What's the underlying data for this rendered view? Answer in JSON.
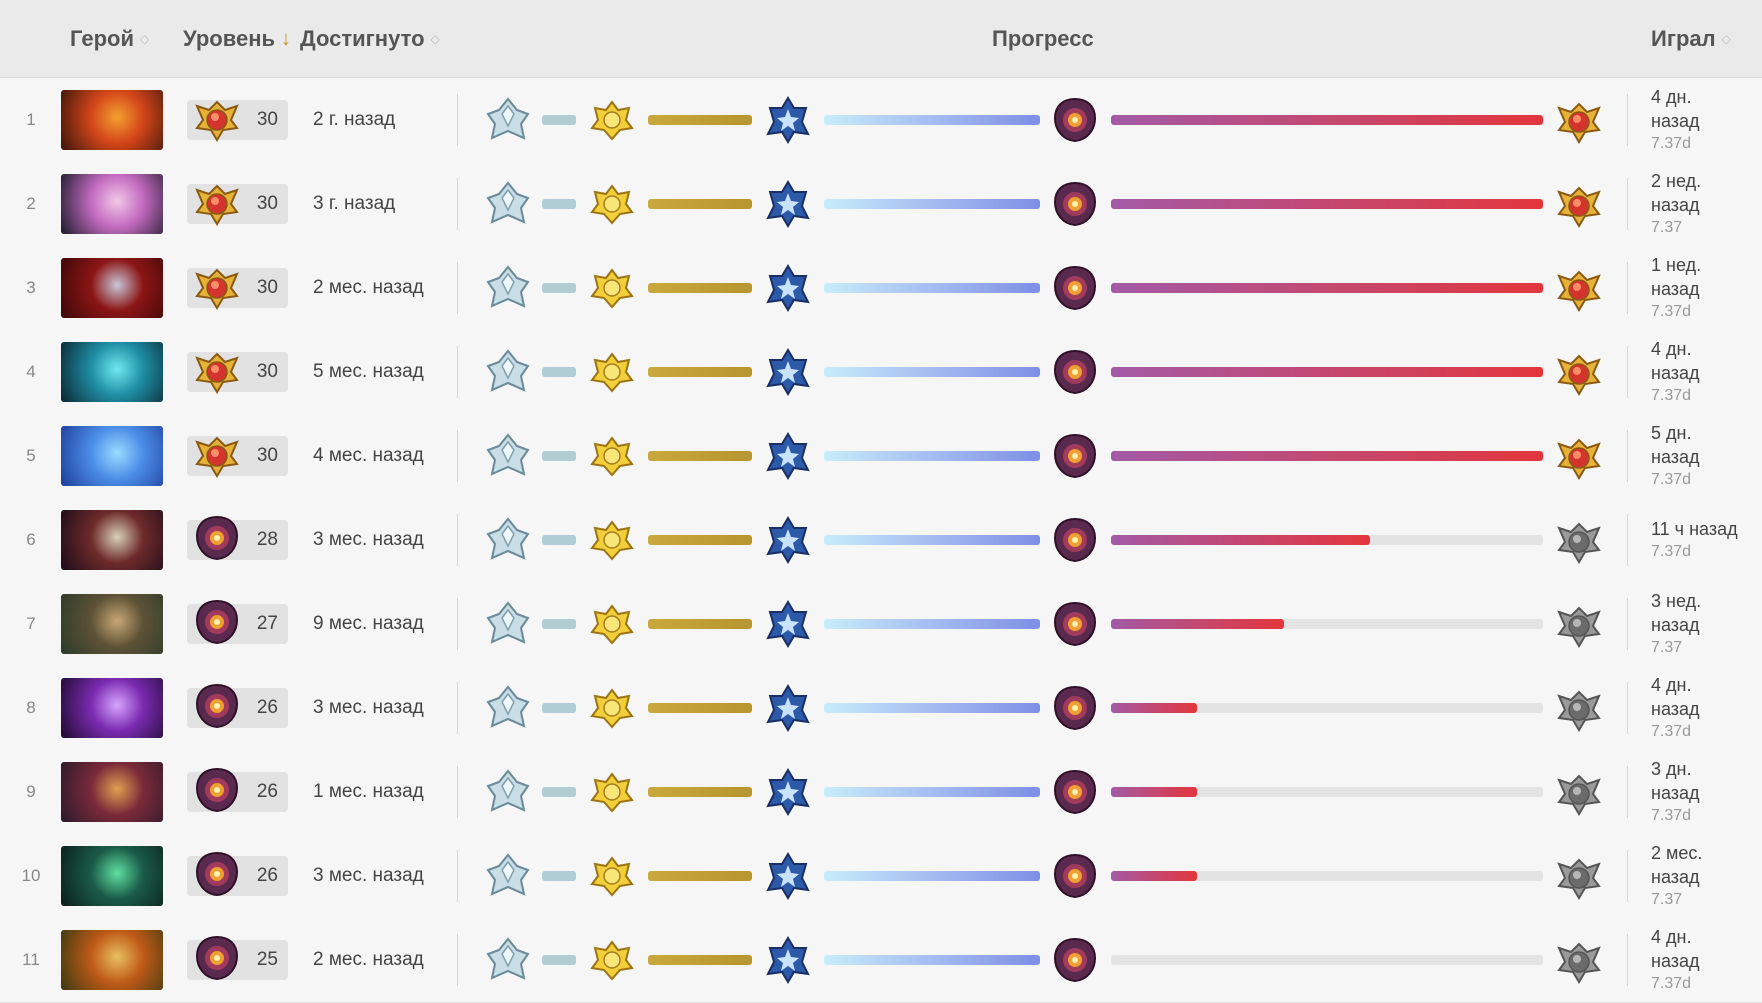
{
  "header": {
    "hero": "Герой",
    "level": "Уровень",
    "achieved": "Достигнуто",
    "progress": "Прогресс",
    "played": "Играл"
  },
  "colors": {
    "bronze_bar": "#b0cdd6",
    "gold_bar": "#b8952f",
    "plat_bar_from": "#c7ecfb",
    "plat_bar_to": "#7f8fe6",
    "grand_bar_from": "#a35aa6",
    "grand_bar_to": "#e3363c",
    "track": "#e3e3e3"
  },
  "icons": [
    "bronze-tier-icon",
    "gold-tier-icon",
    "platinum-tier-icon",
    "grandmaster-tier-icon",
    "legend-tier-icon"
  ],
  "rows": [
    {
      "n": "1",
      "level": "30",
      "achieved": "2 г. назад",
      "progress": 1.0,
      "played": "4 дн. назад",
      "patch": "7.37d",
      "hero_colors": [
        "#3a1408",
        "#d4461a",
        "#f3a030"
      ]
    },
    {
      "n": "2",
      "level": "30",
      "achieved": "3 г. назад",
      "progress": 1.0,
      "played": "2 нед. назад",
      "patch": "7.37",
      "hero_colors": [
        "#1a1a2a",
        "#c46bc0",
        "#f1c8e8"
      ]
    },
    {
      "n": "3",
      "level": "30",
      "achieved": "2 мес. назад",
      "progress": 1.0,
      "played": "1 нед. назад",
      "patch": "7.37d",
      "hero_colors": [
        "#3a0808",
        "#8c1515",
        "#c7c7d9"
      ]
    },
    {
      "n": "4",
      "level": "30",
      "achieved": "5 мес. назад",
      "progress": 1.0,
      "played": "4 дн. назад",
      "patch": "7.37d",
      "hero_colors": [
        "#0a2430",
        "#1f8fa5",
        "#6fe8f0"
      ]
    },
    {
      "n": "5",
      "level": "30",
      "achieved": "4 мес. назад",
      "progress": 1.0,
      "played": "5 дн. назад",
      "patch": "7.37d",
      "hero_colors": [
        "#1e3d9a",
        "#4c8ee8",
        "#9adcff"
      ]
    },
    {
      "n": "6",
      "level": "28",
      "achieved": "3 мес. назад",
      "progress": 0.6,
      "played": "11 ч назад",
      "patch": "7.37d",
      "hero_colors": [
        "#1a0c1a",
        "#6e2a2a",
        "#d7d1b8"
      ]
    },
    {
      "n": "7",
      "level": "27",
      "achieved": "9 мес. назад",
      "progress": 0.4,
      "played": "3 нед. назад",
      "patch": "7.37",
      "hero_colors": [
        "#2b3b2a",
        "#5e5236",
        "#c7a876"
      ]
    },
    {
      "n": "8",
      "level": "26",
      "achieved": "3 мес. назад",
      "progress": 0.2,
      "played": "4 дн. назад",
      "patch": "7.37d",
      "hero_colors": [
        "#1e0a2e",
        "#7a2bb0",
        "#d8a4ff"
      ]
    },
    {
      "n": "9",
      "level": "26",
      "achieved": "1 мес. назад",
      "progress": 0.2,
      "played": "3 дн. назад",
      "patch": "7.37d",
      "hero_colors": [
        "#2a1a2a",
        "#7a2a3a",
        "#e0a050"
      ]
    },
    {
      "n": "10",
      "level": "26",
      "achieved": "3 мес. назад",
      "progress": 0.2,
      "played": "2 мес. назад",
      "patch": "7.37",
      "hero_colors": [
        "#0a1e1a",
        "#1b5b48",
        "#5ee0a2"
      ]
    },
    {
      "n": "11",
      "level": "25",
      "achieved": "2 мес. назад",
      "progress": 0.0,
      "played": "4 дн. назад",
      "patch": "7.37d",
      "hero_colors": [
        "#3a3a10",
        "#c05a18",
        "#e8c060"
      ]
    }
  ]
}
